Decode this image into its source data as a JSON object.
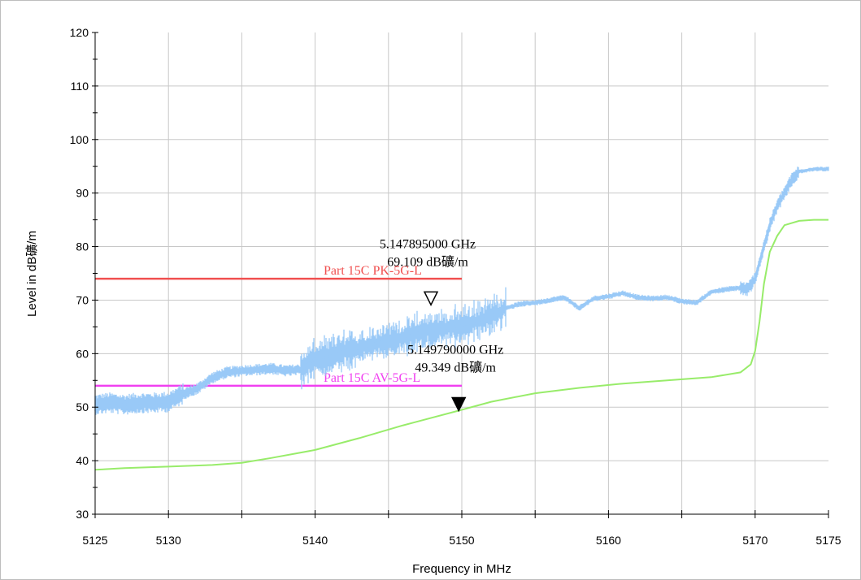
{
  "chart_data": {
    "type": "line",
    "xlabel": "Frequency in MHz",
    "ylabel": "Level in dB礦/m",
    "xlim": [
      5125,
      5175
    ],
    "ylim": [
      30,
      120
    ],
    "x_ticks": [
      "5125",
      "5130",
      "5140",
      "5150",
      "5160",
      "5170",
      "5175"
    ],
    "y_ticks": [
      "30",
      "40",
      "50",
      "60",
      "70",
      "80",
      "90",
      "100",
      "110",
      "120"
    ],
    "grid": true,
    "series": [
      {
        "kind": "peak-trace",
        "color": "#99c9f7",
        "x": [
          5125,
          5126,
          5127,
          5128,
          5129,
          5130,
          5131,
          5132,
          5133,
          5134,
          5135,
          5136,
          5137,
          5138,
          5139,
          5140,
          5141,
          5142,
          5143,
          5144,
          5145,
          5146,
          5147,
          5148,
          5149,
          5150,
          5151,
          5152,
          5153,
          5154,
          5155,
          5156,
          5157,
          5158,
          5159,
          5160,
          5161,
          5162,
          5163,
          5164,
          5165,
          5166,
          5167,
          5168,
          5169,
          5169.5,
          5170,
          5170.5,
          5171,
          5171.5,
          5172,
          5172.5,
          5173,
          5174,
          5175
        ],
        "values": [
          50.5,
          50.8,
          50.5,
          50.8,
          50.8,
          51.0,
          52.5,
          53.5,
          55.5,
          56.5,
          56.8,
          57.0,
          57.2,
          56.8,
          57.0,
          59.0,
          59.5,
          60.5,
          61.0,
          61.8,
          62.5,
          63.0,
          63.8,
          64.3,
          64.8,
          65.3,
          66.0,
          67.0,
          68.5,
          69.3,
          69.5,
          70.0,
          70.5,
          68.5,
          70.3,
          70.7,
          71.3,
          70.5,
          70.3,
          70.5,
          69.8,
          69.5,
          71.5,
          72.0,
          72.3,
          72.0,
          74.0,
          79.0,
          84.0,
          87.5,
          90.0,
          92.5,
          94.0,
          94.5,
          94.5
        ]
      },
      {
        "kind": "average-trace",
        "color": "#98ec6a",
        "x": [
          5125,
          5127,
          5130,
          5133,
          5135,
          5137,
          5140,
          5143,
          5146,
          5149.79,
          5152,
          5155,
          5158,
          5161,
          5164,
          5167,
          5169,
          5169.7,
          5170,
          5170.3,
          5170.6,
          5171,
          5171.5,
          5172,
          5173,
          5174,
          5175
        ],
        "values": [
          38.3,
          38.6,
          38.9,
          39.2,
          39.6,
          40.5,
          42.0,
          44.2,
          46.6,
          49.349,
          51.0,
          52.6,
          53.6,
          54.4,
          55.0,
          55.6,
          56.5,
          58.0,
          60.5,
          66.0,
          73.0,
          79.0,
          82.0,
          84.0,
          84.8,
          85.0,
          85.0
        ]
      }
    ],
    "limit_lines": [
      {
        "label": "Part 15C PK-5G-L",
        "value": 74,
        "x_range": [
          5125,
          5150
        ],
        "color": "#f05050"
      },
      {
        "label": "Part 15C AV-5G-L",
        "value": 54,
        "x_range": [
          5125,
          5150
        ],
        "color": "#f040f0"
      }
    ],
    "markers": [
      {
        "style": "hollow",
        "x": 5147.895,
        "y": 69.109,
        "freq_text": "5.147895000 GHz",
        "level_text": "69.109 dB礦/m"
      },
      {
        "style": "filled",
        "x": 5149.79,
        "y": 49.349,
        "freq_text": "5.149790000 GHz",
        "level_text": "49.349 dB礦/m"
      }
    ]
  }
}
